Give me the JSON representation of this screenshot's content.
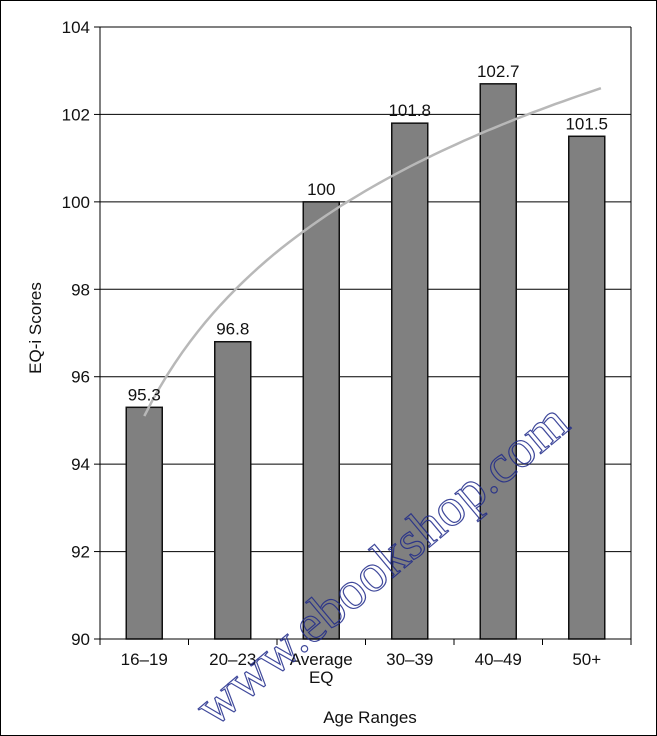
{
  "chart_data": {
    "type": "bar",
    "categories": [
      "16–19",
      "20–23",
      "Average EQ",
      "30–39",
      "40–49",
      "50+"
    ],
    "values": [
      95.3,
      96.8,
      100,
      101.8,
      102.7,
      101.5
    ],
    "data_labels": [
      "95.3",
      "96.8",
      "100",
      "101.8",
      "102.7",
      "101.5"
    ],
    "xlabel": "Age Ranges",
    "ylabel": "EQ-i Scores",
    "ylim": [
      90,
      104
    ],
    "yticks": [
      "90",
      "92",
      "94",
      "96",
      "98",
      "100",
      "102",
      "104"
    ],
    "grid": true,
    "trendline": {
      "type": "logarithmic",
      "from_value": 95.1,
      "to_value": 102.6
    }
  },
  "watermark": "www.ebookshop.com",
  "colors": {
    "bar_fill": "#808080",
    "bar_stroke": "#111111",
    "gridline": "#000000",
    "trendline": "#b8b8b8",
    "watermark": "#1f2a8a"
  }
}
